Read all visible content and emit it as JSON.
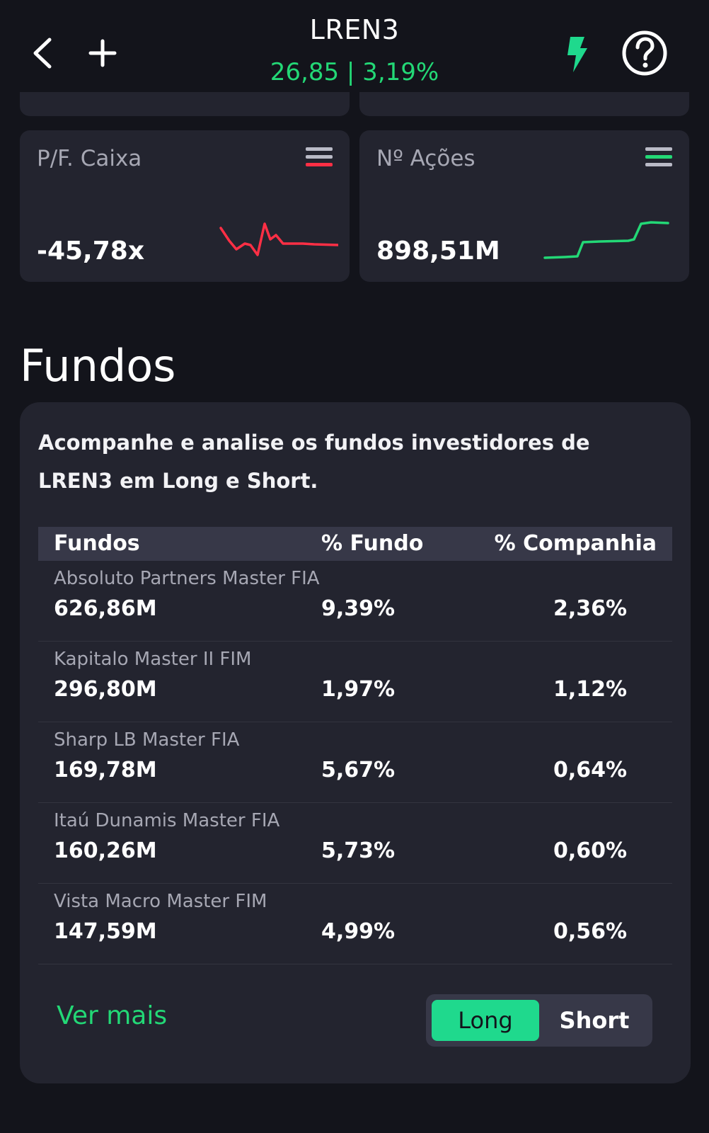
{
  "header": {
    "ticker": "LREN3",
    "quote": "26,85 | 3,19%",
    "icons": {
      "back": "chevron-left-icon",
      "add": "plus-icon",
      "alert": "lightning-bolt-icon",
      "help": "question-circle-icon"
    },
    "quote_color": "#23d876"
  },
  "cards": [
    {
      "label": "P/F. Caixa",
      "value": "-45,78x",
      "trend": "down",
      "accent": "#ff2f45"
    },
    {
      "label": "Nº Ações",
      "value": "898,51M",
      "trend": "up",
      "accent": "#23d876"
    }
  ],
  "funds": {
    "title": "Fundos",
    "description": "Acompanhe e analise os fundos investidores de LREN3 em Long e Short.",
    "columns": [
      "Fundos",
      "% Fundo",
      "% Companhia"
    ],
    "rows": [
      {
        "name": "Absoluto Partners Master FIA",
        "amount": "626,86M",
        "pct_fund": "9,39%",
        "pct_company": "2,36%"
      },
      {
        "name": "Kapitalo Master II FIM",
        "amount": "296,80M",
        "pct_fund": "1,97%",
        "pct_company": "1,12%"
      },
      {
        "name": "Sharp LB Master FIA",
        "amount": "169,78M",
        "pct_fund": "5,67%",
        "pct_company": "0,64%"
      },
      {
        "name": "Itaú Dunamis Master FIA",
        "amount": "160,26M",
        "pct_fund": "5,73%",
        "pct_company": "0,60%"
      },
      {
        "name": "Vista Macro Master FIM",
        "amount": "147,59M",
        "pct_fund": "4,99%",
        "pct_company": "0,56%"
      }
    ],
    "see_more": "Ver mais",
    "toggle": {
      "long": "Long",
      "short": "Short",
      "selected": "Long"
    }
  }
}
